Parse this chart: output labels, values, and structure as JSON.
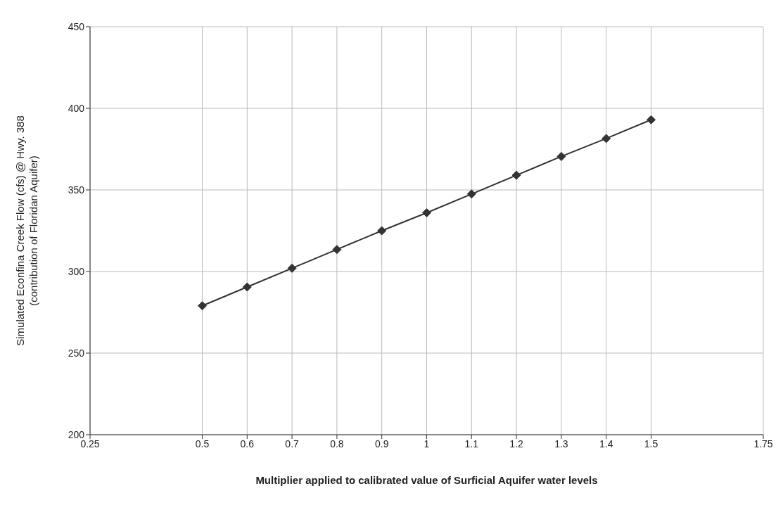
{
  "chart_data": {
    "type": "line",
    "xlabel": "Multiplier applied to calibrated value of Surficial Aquifer water levels",
    "ylabel": "Simulated Econfina Creek Flow (cfs) @ Hwy. 388\n(contribution of Floridan Aquifer)",
    "x": [
      0.5,
      0.6,
      0.7,
      0.8,
      0.9,
      1,
      1.1,
      1.2,
      1.3,
      1.4,
      1.5
    ],
    "series": [
      {
        "color": "#333333",
        "values": [
          279,
          290.5,
          302,
          313.5,
          325,
          336,
          347.5,
          359,
          370.5,
          381.5,
          393
        ]
      }
    ],
    "xlim": [
      0.25,
      1.75
    ],
    "xticks": [
      0.25,
      0.5,
      0.6,
      0.7,
      0.8,
      0.9,
      1,
      1.1,
      1.2,
      1.3,
      1.4,
      1.5,
      1.75
    ],
    "ylim": [
      200,
      450
    ],
    "yticks": [
      200,
      250,
      300,
      350,
      400,
      450
    ],
    "grid": true,
    "marker": "diamond",
    "line_style": "solid"
  }
}
